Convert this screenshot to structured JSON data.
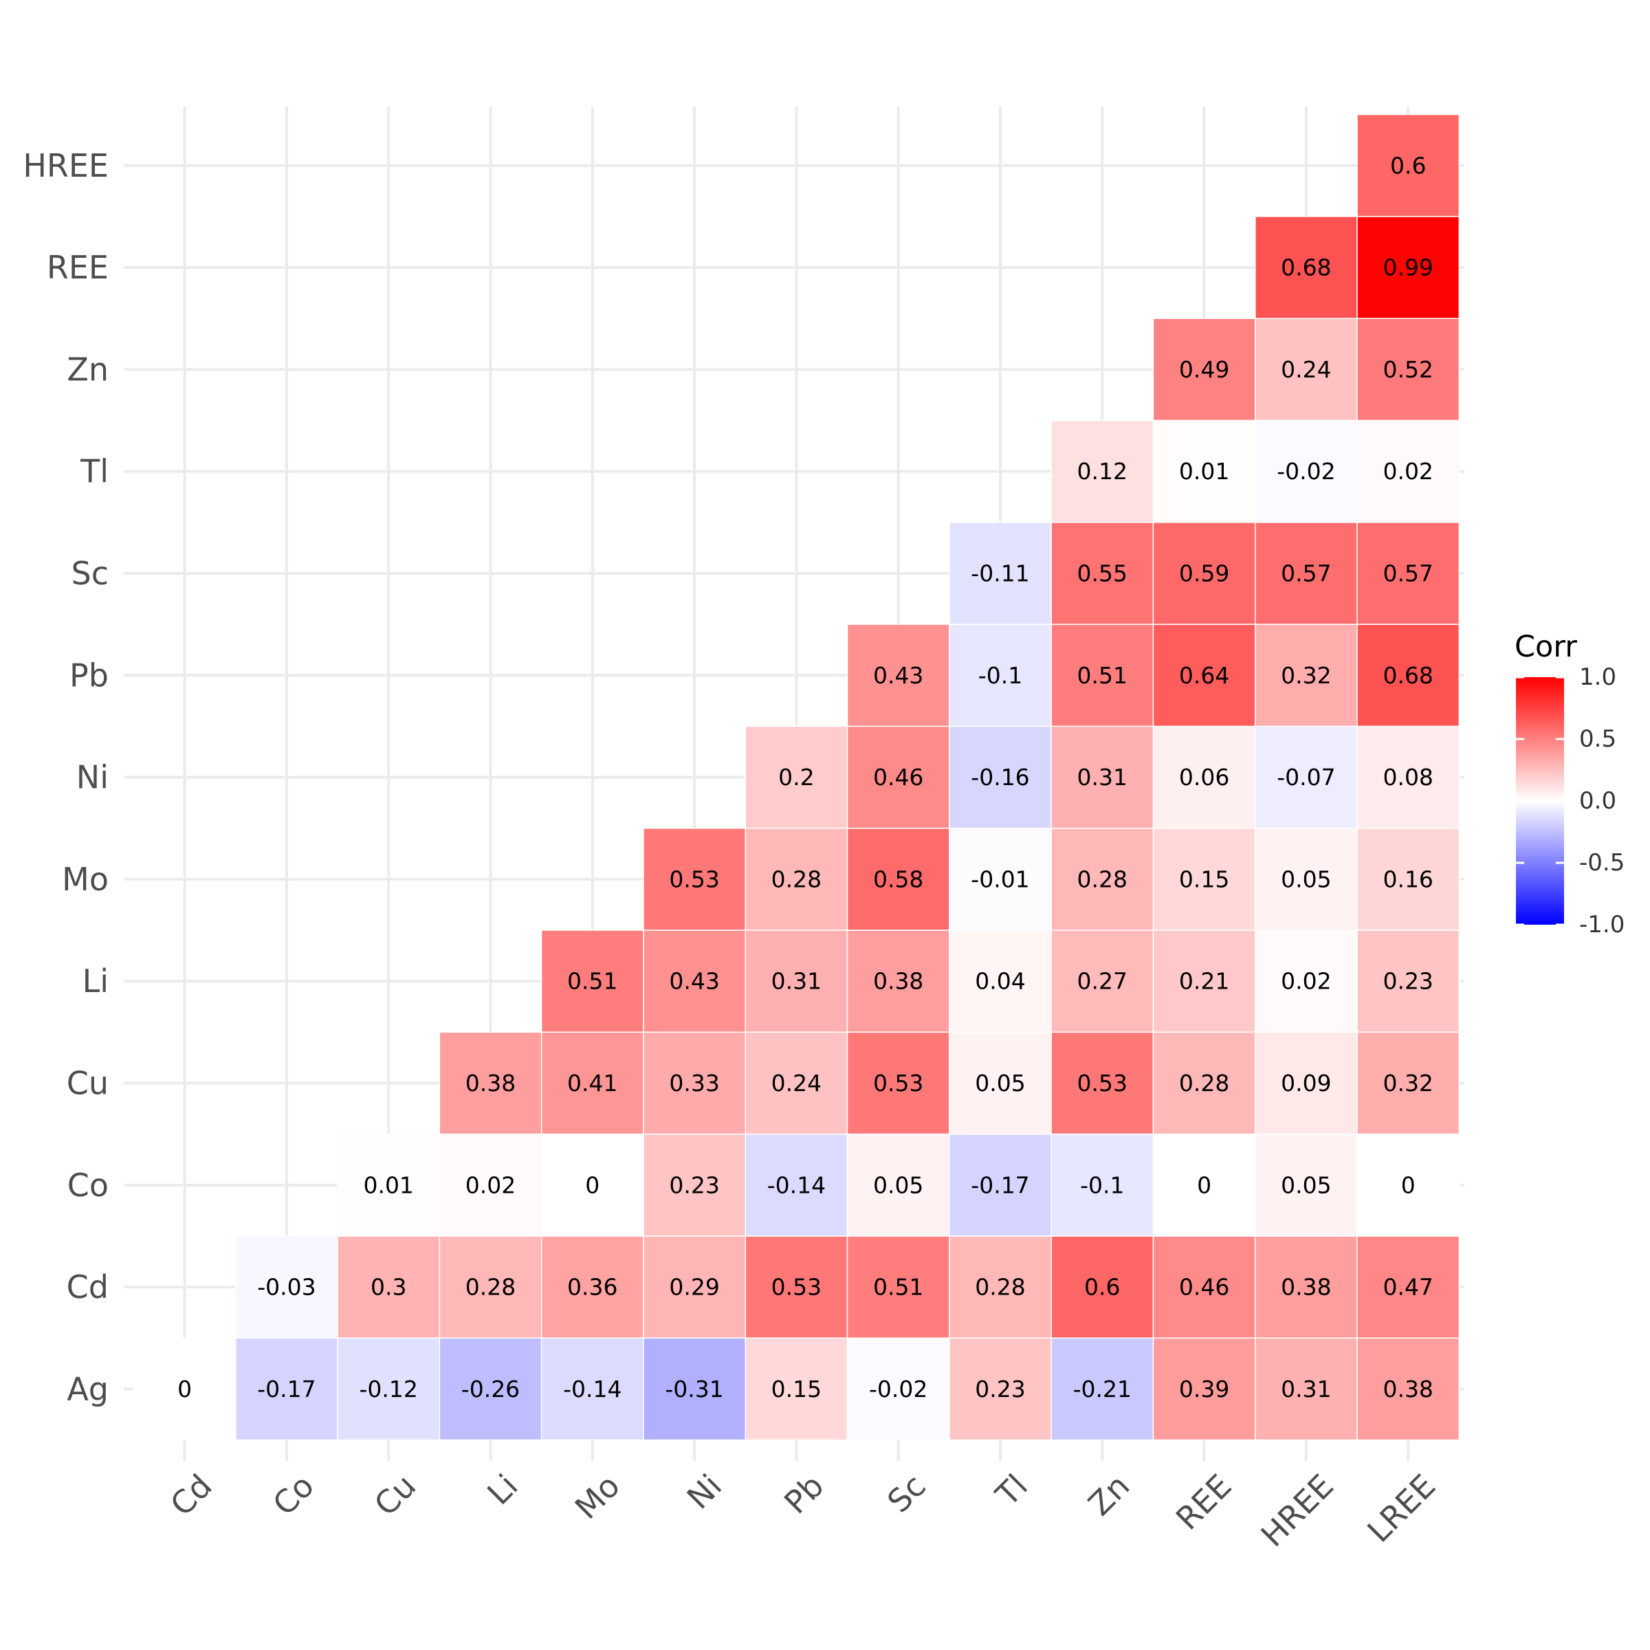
{
  "chart_data": {
    "type": "heatmap",
    "title": "",
    "xlabel": "",
    "ylabel": "",
    "x_categories": [
      "Cd",
      "Co",
      "Cu",
      "Li",
      "Mo",
      "Ni",
      "Pb",
      "Sc",
      "Tl",
      "Zn",
      "REE",
      "HREE",
      "LREE"
    ],
    "y_categories": [
      "Ag",
      "Cd",
      "Co",
      "Cu",
      "Li",
      "Mo",
      "Ni",
      "Pb",
      "Sc",
      "Tl",
      "Zn",
      "REE",
      "HREE"
    ],
    "rows": [
      {
        "y": "Ag",
        "start": 0,
        "values": [
          0,
          -0.17,
          -0.12,
          -0.26,
          -0.14,
          -0.31,
          0.15,
          -0.02,
          0.23,
          -0.21,
          0.39,
          0.31,
          0.38
        ]
      },
      {
        "y": "Cd",
        "start": 1,
        "values": [
          -0.03,
          0.3,
          0.28,
          0.36,
          0.29,
          0.53,
          0.51,
          0.28,
          0.6,
          0.46,
          0.38,
          0.47
        ]
      },
      {
        "y": "Co",
        "start": 2,
        "values": [
          0.01,
          0.02,
          0,
          0.23,
          -0.14,
          0.05,
          -0.17,
          -0.1,
          0,
          0.05,
          0
        ]
      },
      {
        "y": "Cu",
        "start": 3,
        "values": [
          0.38,
          0.41,
          0.33,
          0.24,
          0.53,
          0.05,
          0.53,
          0.28,
          0.09,
          0.32
        ]
      },
      {
        "y": "Li",
        "start": 4,
        "values": [
          0.51,
          0.43,
          0.31,
          0.38,
          0.04,
          0.27,
          0.21,
          0.02,
          0.23
        ]
      },
      {
        "y": "Mo",
        "start": 5,
        "values": [
          0.53,
          0.28,
          0.58,
          -0.01,
          0.28,
          0.15,
          0.05,
          0.16
        ]
      },
      {
        "y": "Ni",
        "start": 6,
        "values": [
          0.2,
          0.46,
          -0.16,
          0.31,
          0.06,
          -0.07,
          0.08
        ]
      },
      {
        "y": "Pb",
        "start": 7,
        "values": [
          0.43,
          -0.1,
          0.51,
          0.64,
          0.32,
          0.68
        ]
      },
      {
        "y": "Sc",
        "start": 8,
        "values": [
          -0.11,
          0.55,
          0.59,
          0.57,
          0.57
        ]
      },
      {
        "y": "Tl",
        "start": 9,
        "values": [
          0.12,
          0.01,
          -0.02,
          0.02
        ]
      },
      {
        "y": "Zn",
        "start": 10,
        "values": [
          0.49,
          0.24,
          0.52
        ]
      },
      {
        "y": "REE",
        "start": 11,
        "values": [
          0.68,
          0.99
        ]
      },
      {
        "y": "HREE",
        "start": 12,
        "values": [
          0.6
        ]
      }
    ],
    "legend": {
      "title": "Corr",
      "placement": "right",
      "range": [
        -1,
        1
      ],
      "ticks": [
        "1.0",
        "0.5",
        "0.0",
        "-0.5",
        "-1.0"
      ],
      "tick_values": [
        1,
        0.5,
        0,
        -0.5,
        -1
      ],
      "colors": {
        "low": "#0000ff",
        "mid": "#ffffff",
        "high": "#ff0000"
      }
    },
    "grid": true
  }
}
